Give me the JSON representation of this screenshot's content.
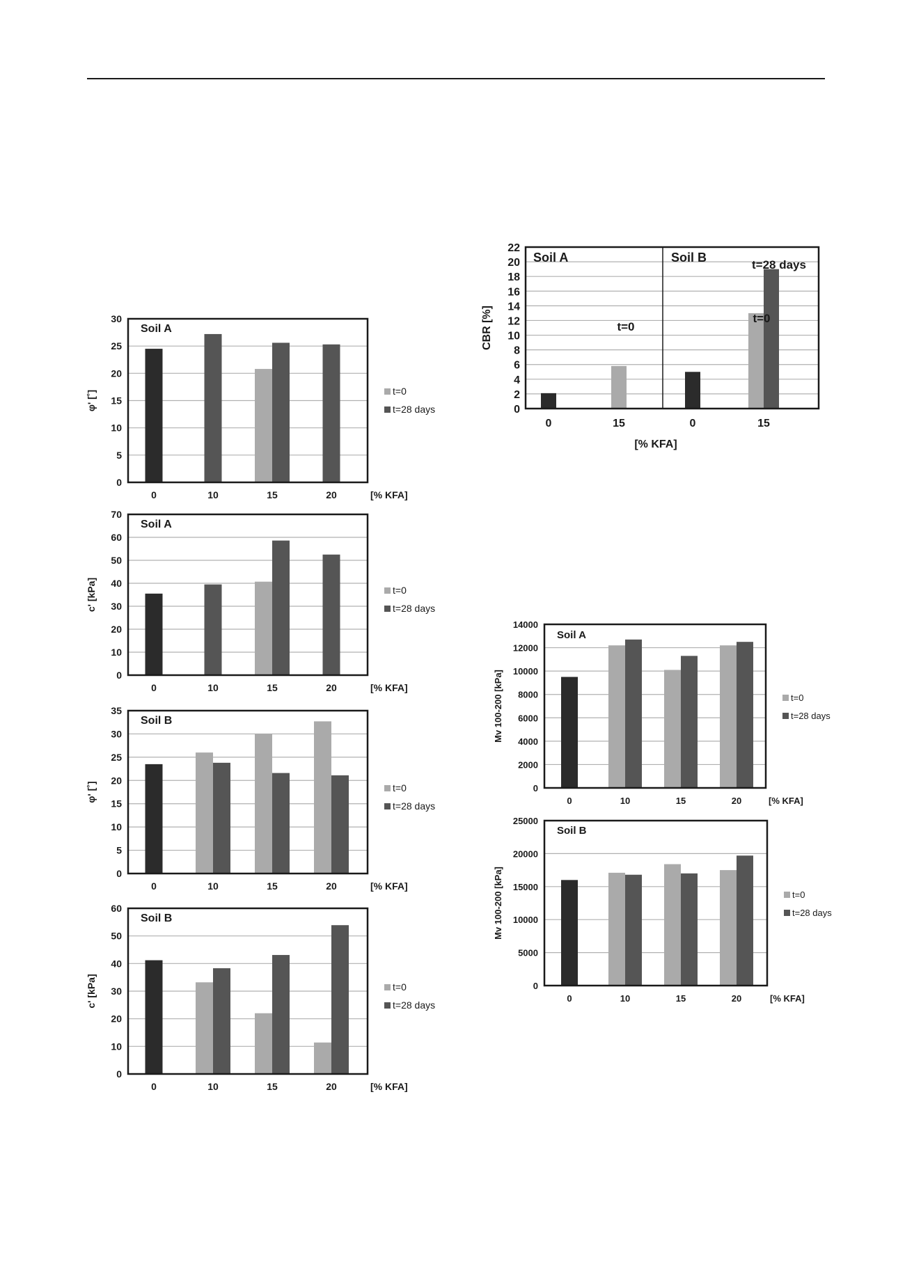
{
  "colors": {
    "t0_bar": "#aaaaaa",
    "t28_bar": "#555555",
    "untreated_bar": "#2b2b2b",
    "grid": "#b0b0b0",
    "frame": "#1a1a1a"
  },
  "chart_data": [
    {
      "id": "phiA",
      "type": "bar",
      "title": "",
      "panel_label": "Soil A",
      "ylabel": "φ' [˚]",
      "xlabel": "[% KFA]",
      "ylim": [
        0,
        30
      ],
      "yticks": [
        0,
        5,
        10,
        15,
        20,
        25,
        30
      ],
      "grid": true,
      "legend_position": "right",
      "categories": [
        "0",
        "10",
        "15",
        "20"
      ],
      "series": [
        {
          "name": "t=0",
          "values": [
            24.5,
            null,
            20.8,
            null
          ]
        },
        {
          "name": "t=28 days",
          "values": [
            null,
            27.2,
            25.6,
            25.3
          ]
        }
      ]
    },
    {
      "id": "cA",
      "type": "bar",
      "title": "",
      "panel_label": "Soil A",
      "ylabel": "c' [kPa]",
      "xlabel": "[% KFA]",
      "ylim": [
        0,
        70
      ],
      "yticks": [
        0,
        10,
        20,
        30,
        40,
        50,
        60,
        70
      ],
      "grid": true,
      "legend_position": "right",
      "categories": [
        "0",
        "10",
        "15",
        "20"
      ],
      "series": [
        {
          "name": "t=0",
          "values": [
            35.5,
            null,
            40.7,
            null
          ]
        },
        {
          "name": "t=28 days",
          "values": [
            null,
            39.5,
            58.6,
            52.5
          ]
        }
      ]
    },
    {
      "id": "phiB",
      "type": "bar",
      "title": "",
      "panel_label": "Soil B",
      "ylabel": "φ' [˚]",
      "xlabel": "[% KFA]",
      "ylim": [
        0,
        35
      ],
      "yticks": [
        0,
        5,
        10,
        15,
        20,
        25,
        30,
        35
      ],
      "grid": true,
      "legend_position": "right",
      "categories": [
        "0",
        "10",
        "15",
        "20"
      ],
      "series": [
        {
          "name": "t=0",
          "values": [
            23.5,
            26.0,
            30.0,
            32.7
          ]
        },
        {
          "name": "t=28 days",
          "values": [
            null,
            23.8,
            21.6,
            21.1
          ]
        }
      ]
    },
    {
      "id": "cB",
      "type": "bar",
      "title": "",
      "panel_label": "Soil B",
      "ylabel": "c' [kPa]",
      "xlabel": "[% KFA]",
      "ylim": [
        0,
        60
      ],
      "yticks": [
        0,
        10,
        20,
        30,
        40,
        50,
        60
      ],
      "grid": true,
      "legend_position": "right",
      "categories": [
        "0",
        "10",
        "15",
        "20"
      ],
      "series": [
        {
          "name": "t=0",
          "values": [
            41.2,
            33.2,
            22.0,
            11.4
          ]
        },
        {
          "name": "t=28 days",
          "values": [
            null,
            38.3,
            43.1,
            53.9
          ]
        }
      ]
    },
    {
      "id": "cbr",
      "type": "bar",
      "title": "",
      "panel_labels": [
        "Soil A",
        "Soil B"
      ],
      "ylabel": "CBR [%]",
      "xlabel": "[% KFA]",
      "ylim": [
        0,
        22
      ],
      "yticks": [
        0,
        2,
        4,
        6,
        8,
        10,
        12,
        14,
        16,
        18,
        20,
        22
      ],
      "grid": true,
      "categories": [
        "0",
        "15",
        "0",
        "15"
      ],
      "series": [
        {
          "name": "t=0",
          "values": [
            2.1,
            5.8,
            5.0,
            13.0
          ]
        },
        {
          "name": "t=28 days",
          "values": [
            null,
            null,
            null,
            19.0
          ]
        }
      ],
      "annotations": [
        "t=0",
        "t=0",
        "t=28 days"
      ]
    },
    {
      "id": "mvA",
      "type": "bar",
      "title": "",
      "panel_label": "Soil A",
      "ylabel": "Mv 100-200 [kPa]",
      "xlabel": "[% KFA]",
      "ylim": [
        0,
        14000
      ],
      "yticks": [
        0,
        2000,
        4000,
        6000,
        8000,
        10000,
        12000,
        14000
      ],
      "grid": true,
      "legend_position": "right",
      "categories": [
        "0",
        "10",
        "15",
        "20"
      ],
      "series": [
        {
          "name": "t=0",
          "values": [
            9500,
            12200,
            10100,
            12200
          ]
        },
        {
          "name": "t=28 days",
          "values": [
            null,
            12700,
            11300,
            12500
          ]
        }
      ]
    },
    {
      "id": "mvB",
      "type": "bar",
      "title": "",
      "panel_label": "Soil B",
      "ylabel": "Mv 100-200 [kPa]",
      "xlabel": "[% KFA]",
      "ylim": [
        0,
        25000
      ],
      "yticks": [
        0,
        5000,
        10000,
        15000,
        20000,
        25000
      ],
      "grid": true,
      "legend_position": "right",
      "categories": [
        "0",
        "10",
        "15",
        "20"
      ],
      "series": [
        {
          "name": "t=0",
          "values": [
            16000,
            17100,
            18400,
            17500
          ]
        },
        {
          "name": "t=28 days",
          "values": [
            null,
            16800,
            17000,
            19700
          ]
        }
      ]
    }
  ]
}
